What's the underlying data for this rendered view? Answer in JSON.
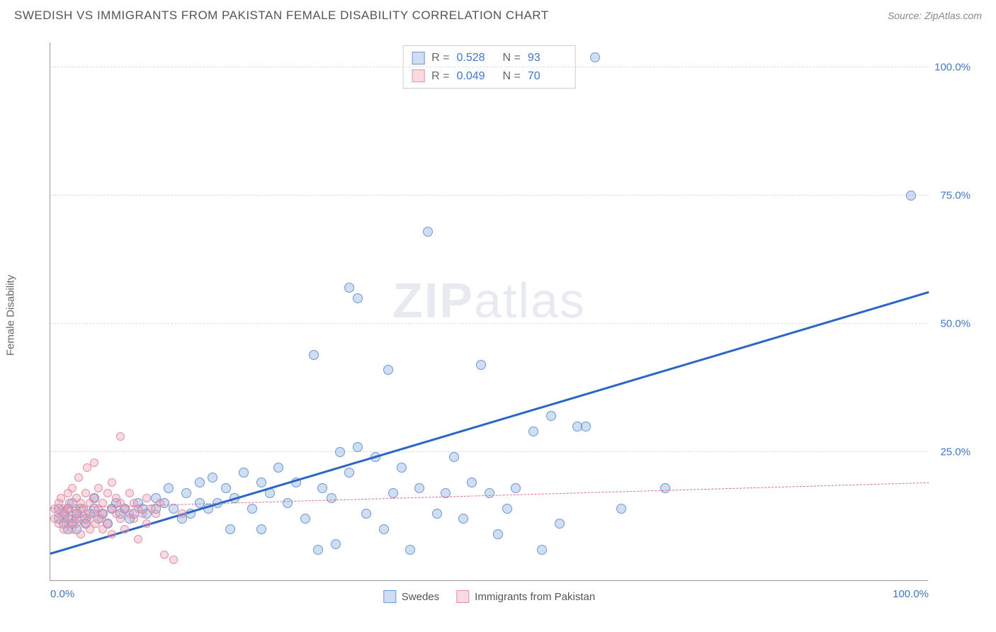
{
  "header": {
    "title": "SWEDISH VS IMMIGRANTS FROM PAKISTAN FEMALE DISABILITY CORRELATION CHART",
    "source": "Source: ZipAtlas.com"
  },
  "watermark": {
    "bold": "ZIP",
    "rest": "atlas"
  },
  "chart": {
    "type": "scatter",
    "ylabel": "Female Disability",
    "xlim": [
      0,
      100
    ],
    "ylim": [
      0,
      105
    ],
    "yticks": [
      {
        "v": 25,
        "label": "25.0%"
      },
      {
        "v": 50,
        "label": "50.0%"
      },
      {
        "v": 75,
        "label": "75.0%"
      },
      {
        "v": 100,
        "label": "100.0%"
      }
    ],
    "xticks": [
      {
        "v": 0,
        "label": "0.0%"
      },
      {
        "v": 100,
        "label": "100.0%"
      }
    ],
    "grid_color": "#dddddd",
    "axis_color": "#999999",
    "background_color": "#ffffff",
    "marker_radius_a": 7,
    "marker_radius_b": 6,
    "series": [
      {
        "key": "swedes",
        "name": "Swedes",
        "fill": "rgba(120,160,220,0.35)",
        "stroke": "#6a98d8",
        "trend": {
          "x1": 0,
          "y1": 5,
          "x2": 100,
          "y2": 56,
          "color": "#2a66c8",
          "style": "solid",
          "width": 3
        },
        "stats": {
          "R": "0.528",
          "N": "93"
        },
        "points": [
          [
            1,
            12
          ],
          [
            1,
            14
          ],
          [
            1.5,
            11
          ],
          [
            1.5,
            13
          ],
          [
            2,
            12
          ],
          [
            2,
            10
          ],
          [
            2,
            14
          ],
          [
            2.5,
            15
          ],
          [
            2.5,
            11
          ],
          [
            3,
            12
          ],
          [
            3,
            13
          ],
          [
            3,
            10
          ],
          [
            3.5,
            14
          ],
          [
            4,
            12
          ],
          [
            4,
            11
          ],
          [
            4.5,
            13
          ],
          [
            5,
            14
          ],
          [
            5,
            16
          ],
          [
            5.5,
            12
          ],
          [
            6,
            13
          ],
          [
            6.5,
            11
          ],
          [
            7,
            14
          ],
          [
            7.5,
            15
          ],
          [
            8,
            13
          ],
          [
            8.5,
            14
          ],
          [
            9,
            12
          ],
          [
            9.5,
            13
          ],
          [
            10,
            15
          ],
          [
            10.5,
            14
          ],
          [
            11,
            13
          ],
          [
            12,
            16
          ],
          [
            12,
            14
          ],
          [
            13,
            15
          ],
          [
            13.5,
            18
          ],
          [
            14,
            14
          ],
          [
            15,
            12
          ],
          [
            15.5,
            17
          ],
          [
            16,
            13
          ],
          [
            17,
            19
          ],
          [
            17,
            15
          ],
          [
            18,
            14
          ],
          [
            18.5,
            20
          ],
          [
            19,
            15
          ],
          [
            20,
            18
          ],
          [
            20.5,
            10
          ],
          [
            21,
            16
          ],
          [
            22,
            21
          ],
          [
            23,
            14
          ],
          [
            24,
            19
          ],
          [
            24,
            10
          ],
          [
            25,
            17
          ],
          [
            26,
            22
          ],
          [
            27,
            15
          ],
          [
            28,
            19
          ],
          [
            29,
            12
          ],
          [
            30,
            44
          ],
          [
            30.5,
            6
          ],
          [
            31,
            18
          ],
          [
            32,
            16
          ],
          [
            32.5,
            7
          ],
          [
            33,
            25
          ],
          [
            34,
            57
          ],
          [
            34,
            21
          ],
          [
            35,
            55
          ],
          [
            35,
            26
          ],
          [
            36,
            13
          ],
          [
            37,
            24
          ],
          [
            38,
            10
          ],
          [
            38.5,
            41
          ],
          [
            39,
            17
          ],
          [
            40,
            22
          ],
          [
            41,
            6
          ],
          [
            42,
            18
          ],
          [
            43,
            68
          ],
          [
            44,
            13
          ],
          [
            45,
            17
          ],
          [
            46,
            24
          ],
          [
            47,
            12
          ],
          [
            48,
            19
          ],
          [
            49,
            42
          ],
          [
            50,
            17
          ],
          [
            51,
            9
          ],
          [
            52,
            14
          ],
          [
            53,
            18
          ],
          [
            55,
            29
          ],
          [
            56,
            6
          ],
          [
            57,
            32
          ],
          [
            58,
            11
          ],
          [
            60,
            30
          ],
          [
            61,
            30
          ],
          [
            62,
            102
          ],
          [
            65,
            14
          ],
          [
            70,
            18
          ],
          [
            98,
            75
          ]
        ]
      },
      {
        "key": "pakistan",
        "name": "Immigrants from Pakistan",
        "fill": "rgba(240,150,170,0.35)",
        "stroke": "#e890a5",
        "trend": {
          "x1": 0,
          "y1": 14,
          "x2": 100,
          "y2": 19,
          "color": "#e46a8a",
          "style": "dashed",
          "width": 1.5
        },
        "stats": {
          "R": "0.049",
          "N": "70"
        },
        "points": [
          [
            0.5,
            12
          ],
          [
            0.5,
            14
          ],
          [
            1,
            15
          ],
          [
            1,
            11
          ],
          [
            1,
            13
          ],
          [
            1.2,
            16
          ],
          [
            1.5,
            12
          ],
          [
            1.5,
            14
          ],
          [
            1.5,
            10
          ],
          [
            1.8,
            13
          ],
          [
            2,
            17
          ],
          [
            2,
            11
          ],
          [
            2,
            14
          ],
          [
            2.2,
            15
          ],
          [
            2.5,
            12
          ],
          [
            2.5,
            18
          ],
          [
            2.5,
            10
          ],
          [
            2.8,
            14
          ],
          [
            3,
            13
          ],
          [
            3,
            16
          ],
          [
            3,
            11
          ],
          [
            3.2,
            20
          ],
          [
            3.5,
            12
          ],
          [
            3.5,
            15
          ],
          [
            3.5,
            9
          ],
          [
            3.8,
            14
          ],
          [
            4,
            17
          ],
          [
            4,
            11
          ],
          [
            4,
            13
          ],
          [
            4.2,
            22
          ],
          [
            4.5,
            12
          ],
          [
            4.5,
            15
          ],
          [
            4.5,
            10
          ],
          [
            5,
            23
          ],
          [
            5,
            13
          ],
          [
            5,
            16
          ],
          [
            5.2,
            11
          ],
          [
            5.5,
            14
          ],
          [
            5.5,
            18
          ],
          [
            5.8,
            12
          ],
          [
            6,
            15
          ],
          [
            6,
            10
          ],
          [
            6,
            13
          ],
          [
            6.5,
            17
          ],
          [
            6.5,
            11
          ],
          [
            7,
            14
          ],
          [
            7,
            19
          ],
          [
            7,
            9
          ],
          [
            7.5,
            13
          ],
          [
            7.5,
            16
          ],
          [
            8,
            12
          ],
          [
            8,
            15
          ],
          [
            8,
            28
          ],
          [
            8.5,
            14
          ],
          [
            8.5,
            10
          ],
          [
            9,
            13
          ],
          [
            9,
            17
          ],
          [
            9.5,
            12
          ],
          [
            9.5,
            15
          ],
          [
            10,
            14
          ],
          [
            10,
            8
          ],
          [
            10.5,
            13
          ],
          [
            11,
            16
          ],
          [
            11,
            11
          ],
          [
            11.5,
            14
          ],
          [
            12,
            13
          ],
          [
            12.5,
            15
          ],
          [
            13,
            5
          ],
          [
            14,
            4
          ],
          [
            15,
            13
          ]
        ]
      }
    ]
  },
  "stats_box": {
    "R_label": "R  =",
    "N_label": "N  ="
  },
  "legend": {
    "label_a": "Swedes",
    "label_b": "Immigrants from Pakistan"
  }
}
